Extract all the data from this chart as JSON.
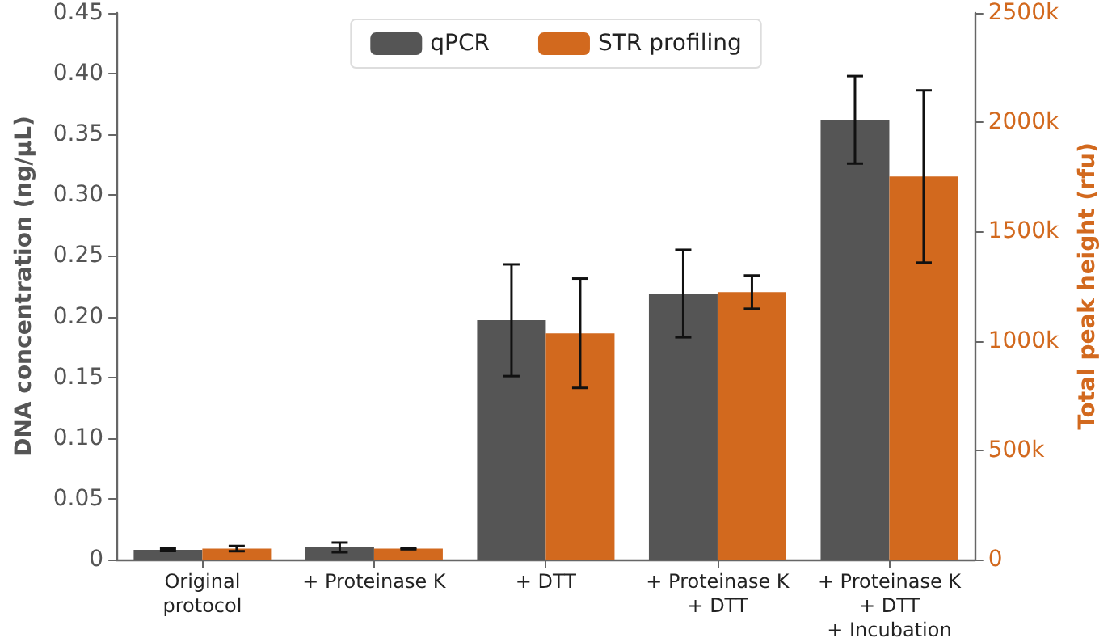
{
  "chart_data": {
    "type": "bar",
    "ylabel": "DNA concentration (ng/μL)",
    "y2label": "Total peak height (rfu)",
    "categories": [
      "Original\nprotocol",
      "+ Proteinase K",
      "+ DTT",
      "+ Proteinase K\n+ DTT",
      "+ Proteinase K\n+ DTT\n+ Incubation"
    ],
    "series": [
      {
        "name": "qPCR",
        "color": "#555555",
        "values": [
          0.008,
          0.01,
          0.197,
          0.219,
          0.362
        ],
        "errors": [
          0.001,
          0.004,
          0.046,
          0.036,
          0.036
        ]
      },
      {
        "name": "STR profiling",
        "color": "#d2691e",
        "axis": "y2",
        "values": [
          50000,
          50000,
          1035000,
          1223000,
          1752000
        ],
        "errors": [
          12000,
          3000,
          250000,
          76000,
          394000
        ]
      }
    ],
    "ylim": [
      0,
      0.45
    ],
    "yticks": [
      0,
      {
        "value": 0.05,
        "label": "0.05"
      },
      {
        "value": 0.1,
        "label": "0.10"
      },
      {
        "value": 0.15,
        "label": "0.15"
      },
      {
        "value": 0.2,
        "label": "0.20"
      },
      {
        "value": 0.25,
        "label": "0.25"
      },
      {
        "value": 0.3,
        "label": "0.30"
      },
      {
        "value": 0.35,
        "label": "0.35"
      },
      {
        "value": 0.4,
        "label": "0.40"
      },
      {
        "value": 0.45,
        "label": "0.45"
      }
    ],
    "y2lim": [
      0,
      2500000
    ],
    "y2ticks": [
      0,
      {
        "value": 500000,
        "label": "500k"
      },
      {
        "value": 1000000,
        "label": "1000k"
      },
      {
        "value": 1500000,
        "label": "1500k"
      },
      {
        "value": 2000000,
        "label": "2000k"
      },
      {
        "value": 2500000,
        "label": "2500k"
      }
    ],
    "legend": "top",
    "grid": false
  }
}
